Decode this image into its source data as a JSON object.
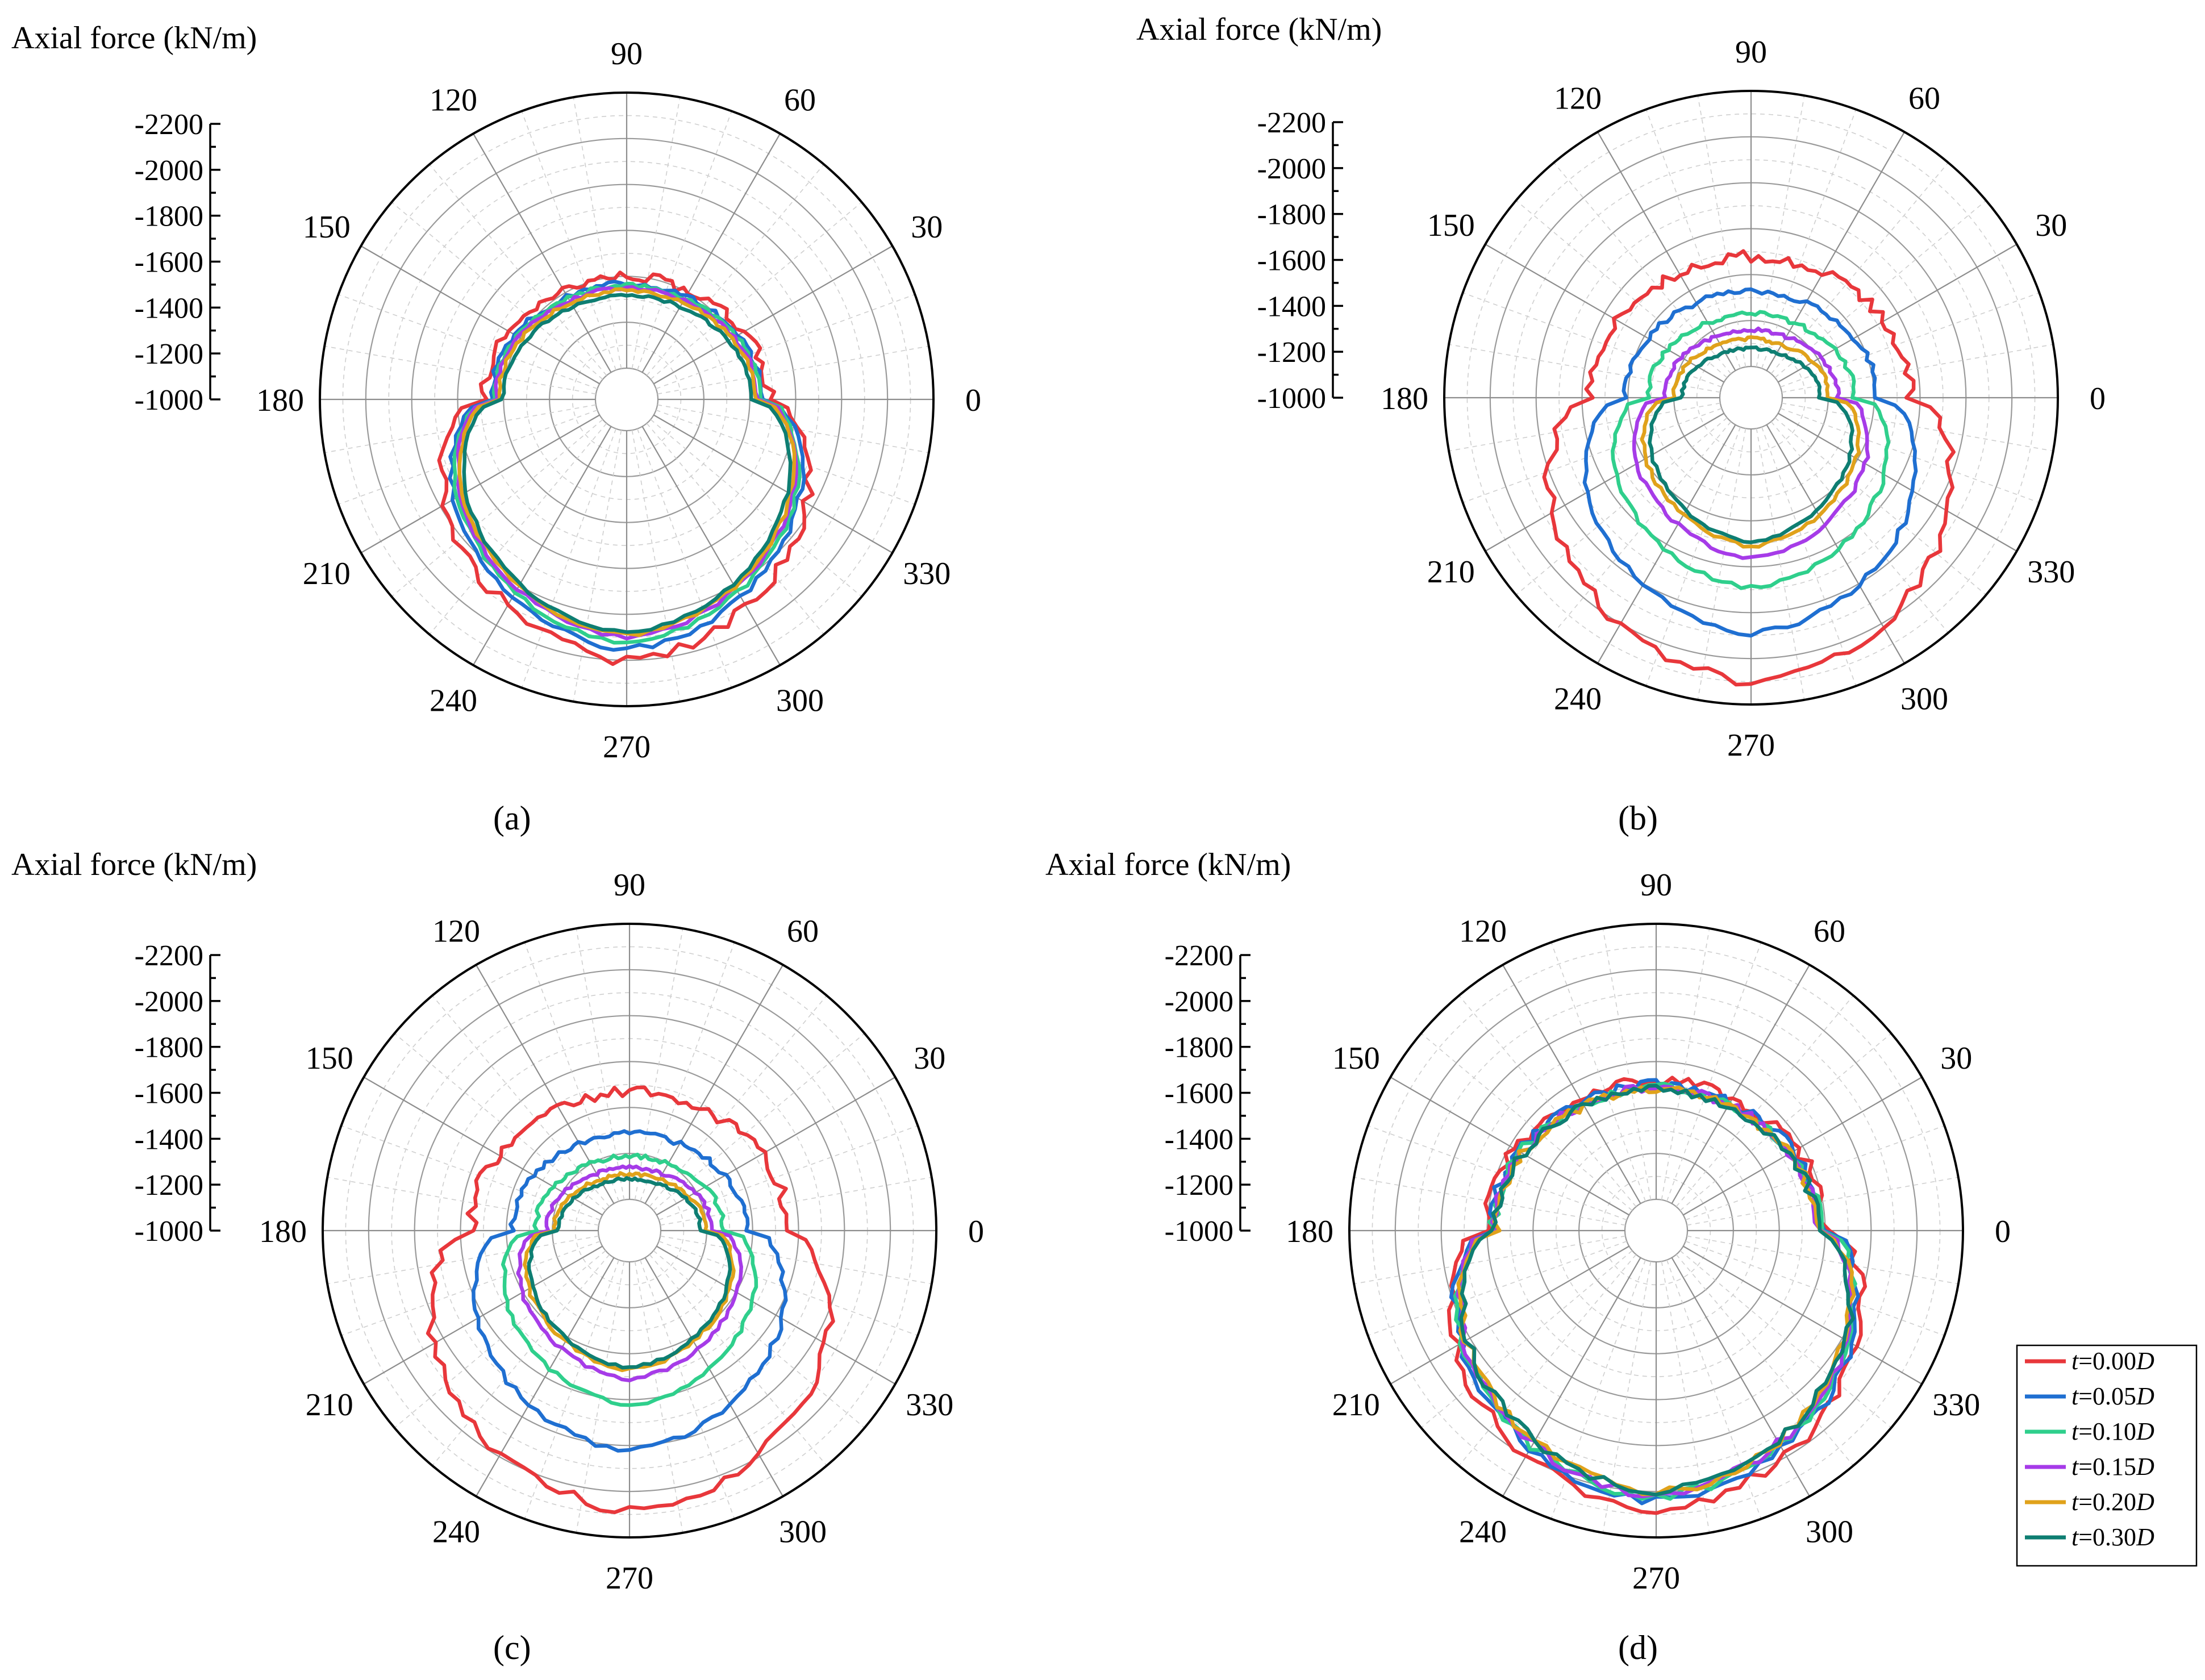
{
  "figure": {
    "panel_labels": [
      "(a)",
      "(b)",
      "(c)",
      "(d)"
    ],
    "legend": [
      {
        "t": "t",
        "eq": "=0.00",
        "d": "D",
        "color": "#e8373b"
      },
      {
        "t": "t",
        "eq": "=0.05",
        "d": "D",
        "color": "#1f6fd1"
      },
      {
        "t": "t",
        "eq": "=0.10",
        "d": "D",
        "color": "#2fcf8c"
      },
      {
        "t": "t",
        "eq": "=0.15",
        "d": "D",
        "color": "#a63be8"
      },
      {
        "t": "t",
        "eq": "=0.20",
        "d": "D",
        "color": "#e0a21b"
      },
      {
        "t": "t",
        "eq": "=0.30",
        "d": "D",
        "color": "#0e7e72"
      }
    ]
  },
  "chart_data": [
    {
      "type": "polar-line",
      "panel": "(a)",
      "ylabel": "Axial force (kN/m)",
      "radial_ticks": [
        "-2200",
        "-2000",
        "-1800",
        "-1600",
        "-1400",
        "-1200",
        "-1000"
      ],
      "radial_range": [
        -1000,
        -2200
      ],
      "angle_ticks": [
        "90",
        "60",
        "30",
        "0",
        "330",
        "300",
        "270",
        "240",
        "210",
        "180",
        "150",
        "120"
      ],
      "series": [
        {
          "name": "t=0.00D",
          "color": "#e8373b",
          "base": 1400,
          "amp_bottom": 600,
          "noise": 25
        },
        {
          "name": "t=0.05D",
          "color": "#1f6fd1",
          "base": 1370,
          "amp_bottom": 580,
          "noise": 12
        },
        {
          "name": "t=0.10D",
          "color": "#2fcf8c",
          "base": 1360,
          "amp_bottom": 560,
          "noise": 10
        },
        {
          "name": "t=0.15D",
          "color": "#a63be8",
          "base": 1350,
          "amp_bottom": 550,
          "noise": 8
        },
        {
          "name": "t=0.20D",
          "color": "#e0a21b",
          "base": 1340,
          "amp_bottom": 550,
          "noise": 8
        },
        {
          "name": "t=0.30D",
          "color": "#0e7e72",
          "base": 1320,
          "amp_bottom": 560,
          "noise": 6
        }
      ]
    },
    {
      "type": "polar-line",
      "panel": "(b)",
      "ylabel": "Axial force (kN/m)",
      "radial_ticks": [
        "-2200",
        "-2000",
        "-1800",
        "-1600",
        "-1400",
        "-1200",
        "-1000"
      ],
      "radial_range": [
        -1000,
        -2200
      ],
      "angle_ticks": [
        "90",
        "60",
        "30",
        "0",
        "330",
        "300",
        "270",
        "240",
        "210",
        "180",
        "150",
        "120"
      ],
      "series": [
        {
          "name": "t=0.00D",
          "color": "#e8373b",
          "base": 1480,
          "amp_bottom": 620,
          "noise": 25
        },
        {
          "name": "t=0.05D",
          "color": "#1f6fd1",
          "base": 1330,
          "amp_bottom": 560,
          "noise": 12
        },
        {
          "name": "t=0.10D",
          "color": "#2fcf8c",
          "base": 1230,
          "amp_bottom": 460,
          "noise": 10
        },
        {
          "name": "t=0.15D",
          "color": "#a63be8",
          "base": 1160,
          "amp_bottom": 400,
          "noise": 8
        },
        {
          "name": "t=0.20D",
          "color": "#e0a21b",
          "base": 1120,
          "amp_bottom": 390,
          "noise": 8
        },
        {
          "name": "t=0.30D",
          "color": "#0e7e72",
          "base": 1080,
          "amp_bottom": 410,
          "noise": 6
        }
      ]
    },
    {
      "type": "polar-line",
      "panel": "(c)",
      "ylabel": "Axial force (kN/m)",
      "radial_ticks": [
        "-2200",
        "-2000",
        "-1800",
        "-1600",
        "-1400",
        "-1200",
        "-1000"
      ],
      "radial_range": [
        -1000,
        -2200
      ],
      "angle_ticks": [
        "90",
        "60",
        "30",
        "0",
        "330",
        "300",
        "270",
        "240",
        "210",
        "180",
        "150",
        "120"
      ],
      "series": [
        {
          "name": "t=0.00D",
          "color": "#e8373b",
          "base": 1470,
          "amp_bottom": 610,
          "noise": 25
        },
        {
          "name": "t=0.05D",
          "color": "#1f6fd1",
          "base": 1290,
          "amp_bottom": 530,
          "noise": 12
        },
        {
          "name": "t=0.10D",
          "color": "#2fcf8c",
          "base": 1190,
          "amp_bottom": 430,
          "noise": 10
        },
        {
          "name": "t=0.15D",
          "color": "#a63be8",
          "base": 1140,
          "amp_bottom": 370,
          "noise": 8
        },
        {
          "name": "t=0.20D",
          "color": "#e0a21b",
          "base": 1110,
          "amp_bottom": 360,
          "noise": 8
        },
        {
          "name": "t=0.30D",
          "color": "#0e7e72",
          "base": 1090,
          "amp_bottom": 370,
          "noise": 6
        }
      ]
    },
    {
      "type": "polar-line",
      "panel": "(d)",
      "ylabel": "Axial force (kN/m)",
      "radial_ticks": [
        "-2200",
        "-2000",
        "-1800",
        "-1600",
        "-1400",
        "-1200",
        "-1000"
      ],
      "radial_range": [
        -1000,
        -2200
      ],
      "angle_ticks": [
        "90",
        "60",
        "30",
        "0",
        "330",
        "300",
        "270",
        "240",
        "210",
        "180",
        "150",
        "120"
      ],
      "series": [
        {
          "name": "t=0.00D",
          "color": "#e8373b",
          "base": 1520,
          "amp_bottom": 560,
          "noise": 25
        },
        {
          "name": "t=0.05D",
          "color": "#1f6fd1",
          "base": 1500,
          "amp_bottom": 545,
          "noise": 22
        },
        {
          "name": "t=0.10D",
          "color": "#2fcf8c",
          "base": 1490,
          "amp_bottom": 535,
          "noise": 22
        },
        {
          "name": "t=0.15D",
          "color": "#a63be8",
          "base": 1485,
          "amp_bottom": 530,
          "noise": 20
        },
        {
          "name": "t=0.20D",
          "color": "#e0a21b",
          "base": 1480,
          "amp_bottom": 525,
          "noise": 20
        },
        {
          "name": "t=0.30D",
          "color": "#0e7e72",
          "base": 1478,
          "amp_bottom": 520,
          "noise": 20
        }
      ]
    }
  ]
}
